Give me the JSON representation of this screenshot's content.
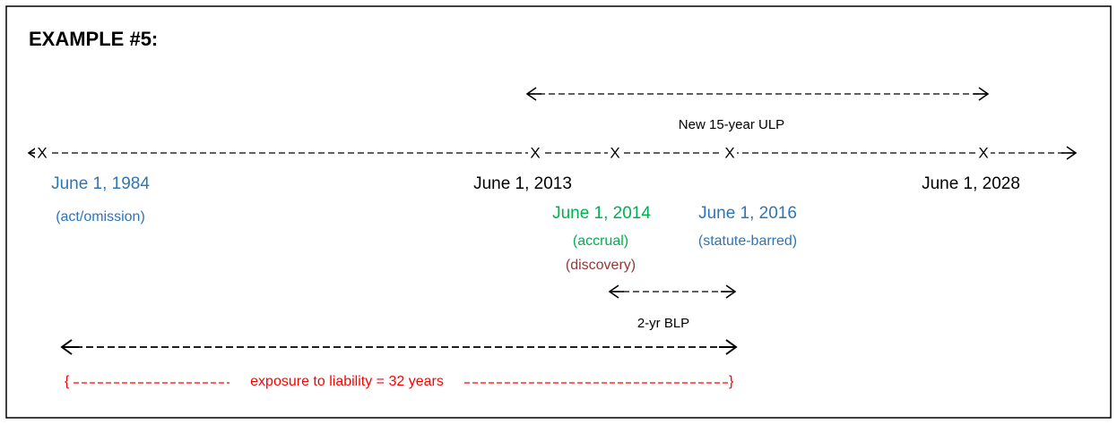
{
  "title": "EXAMPLE #5:",
  "ulp": {
    "label": "New 15-year ULP"
  },
  "timeline": {
    "markers": [
      "X",
      "X",
      "X",
      "X",
      "X"
    ]
  },
  "dates": {
    "d1984": {
      "date": "June 1, 1984",
      "note": "(act/omission)"
    },
    "d2013": {
      "date": "June 1, 2013"
    },
    "d2028": {
      "date": "June 1, 2028"
    },
    "d2014": {
      "date": "June 1, 2014",
      "note": "(accrual)",
      "note2": "(discovery)"
    },
    "d2016": {
      "date": "June 1, 2016",
      "note": "(statute-barred)"
    }
  },
  "blp": {
    "label": "2-yr BLP"
  },
  "exposure": {
    "open": "{",
    "label": "exposure to liability = 32 years",
    "close": "}"
  }
}
